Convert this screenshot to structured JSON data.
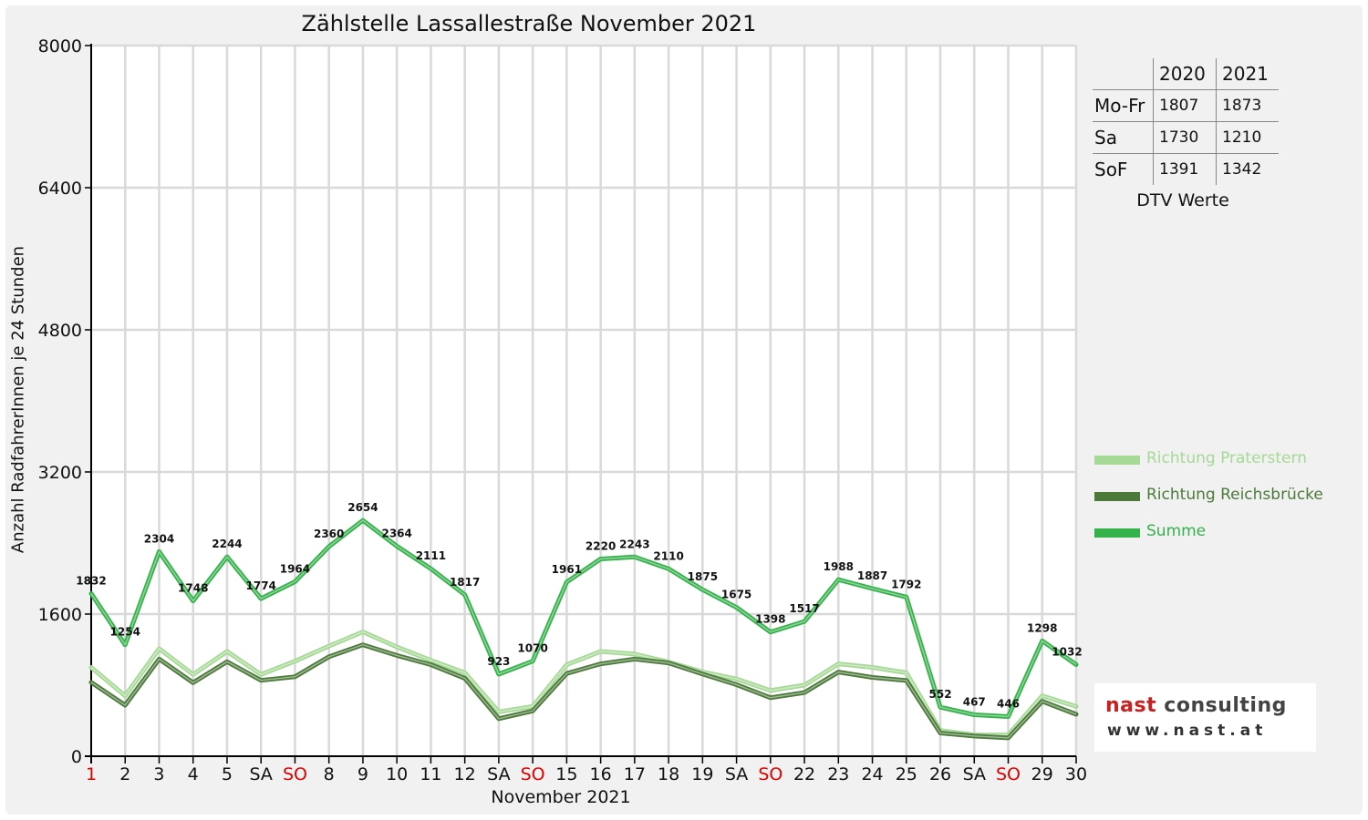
{
  "colors": {
    "praterstern": "#a6d996",
    "reichsbruecke": "#4b7a3a",
    "summe": "#34b24a",
    "weekend_red": "#e00000"
  },
  "dtv_table": {
    "columns": [
      "",
      "2020",
      "2021"
    ],
    "rows": [
      {
        "label": "Mo-Fr",
        "v2020": "1807",
        "v2021": "1873"
      },
      {
        "label": "Sa",
        "v2020": "1730",
        "v2021": "1210"
      },
      {
        "label": "SoF",
        "v2020": "1391",
        "v2021": "1342"
      }
    ],
    "caption": "DTV Werte"
  },
  "logo": {
    "line1_red": "nast",
    "line1_rest": " consulting",
    "line2": "www.nast.at"
  },
  "chart_data": {
    "type": "line",
    "title": "Zählstelle Lassallestraße November 2021",
    "xlabel": "November 2021",
    "ylabel": "Anzahl RadfahrerInnen je 24 Stunden",
    "ylim": [
      0,
      8000
    ],
    "yticks": [
      "0",
      "1600",
      "3200",
      "4800",
      "6400",
      "8000"
    ],
    "grid": true,
    "legend_position": "right",
    "categories": [
      "1",
      "2",
      "3",
      "4",
      "5",
      "SA",
      "SO",
      "8",
      "9",
      "10",
      "11",
      "12",
      "SA",
      "SO",
      "15",
      "16",
      "17",
      "18",
      "19",
      "SA",
      "SO",
      "22",
      "23",
      "24",
      "25",
      "26",
      "SA",
      "SO",
      "29",
      "30"
    ],
    "red_categories": [
      0,
      6,
      13,
      20,
      27
    ],
    "series": [
      {
        "name": "Richtung Praterstern",
        "color": "#a6d996",
        "values": [
          1000,
          680,
          1210,
          920,
          1180,
          920,
          1070,
          1240,
          1400,
          1230,
          1080,
          940,
          500,
          560,
          1030,
          1180,
          1150,
          1060,
          950,
          870,
          740,
          800,
          1040,
          1000,
          940,
          290,
          240,
          240,
          680,
          560
        ]
      },
      {
        "name": "Richtung Reichsbrücke",
        "color": "#4b7a3a",
        "values": [
          832,
          574,
          1094,
          828,
          1064,
          854,
          894,
          1120,
          1254,
          1134,
          1031,
          877,
          423,
          510,
          931,
          1040,
          1093,
          1050,
          925,
          805,
          658,
          717,
          948,
          887,
          852,
          262,
          227,
          206,
          618,
          472
        ]
      },
      {
        "name": "Summe",
        "color": "#34b24a",
        "values": [
          1832,
          1254,
          2304,
          1748,
          2244,
          1774,
          1964,
          2360,
          2654,
          2364,
          2111,
          1817,
          923,
          1070,
          1961,
          2220,
          2243,
          2110,
          1875,
          1675,
          1398,
          1517,
          1988,
          1887,
          1792,
          552,
          467,
          446,
          1298,
          1032
        ]
      }
    ],
    "data_labels": [
      "1832",
      "1254",
      "2304",
      "1748",
      "2244",
      "1774",
      "1964",
      "2360",
      "2654",
      "2364",
      "2111",
      "1817",
      "923",
      "1070",
      "1961",
      "2220",
      "2243",
      "2110",
      "1875",
      "1675",
      "1398",
      "1517",
      "1988",
      "1887",
      "1792",
      "552",
      "467",
      "446",
      "1298",
      "1032"
    ]
  }
}
